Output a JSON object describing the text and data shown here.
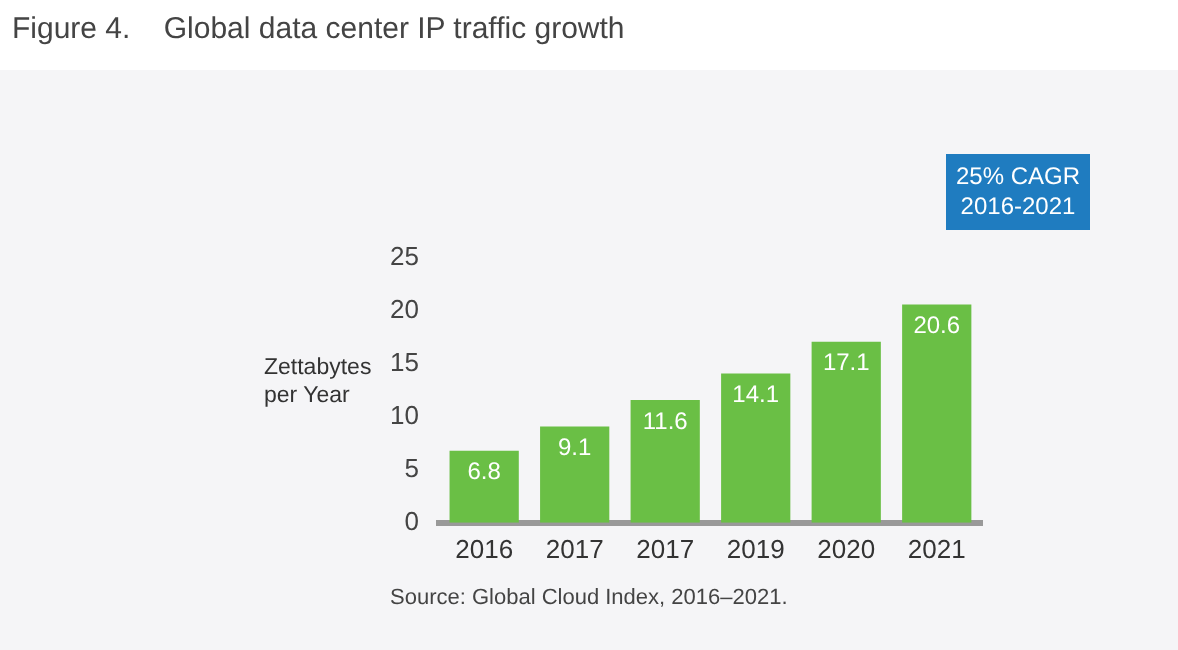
{
  "chart_data": {
    "type": "bar",
    "title": "Figure 4.    Global data center IP traffic growth",
    "ylabel": "Zettabytes per Year",
    "categories": [
      "2016",
      "2017",
      "2017",
      "2019",
      "2020",
      "2021"
    ],
    "values": [
      6.8,
      9.1,
      11.6,
      14.1,
      17.1,
      20.6
    ],
    "color": "#6abf45",
    "ylim": [
      0,
      25
    ],
    "yticks": [
      0,
      5,
      10,
      15,
      20,
      25
    ],
    "grid": false,
    "legend": false,
    "data_labels": true,
    "annotations": [
      "25% CAGR 2016-2021",
      "Source: Global Cloud Index, 2016–2021."
    ]
  }
}
